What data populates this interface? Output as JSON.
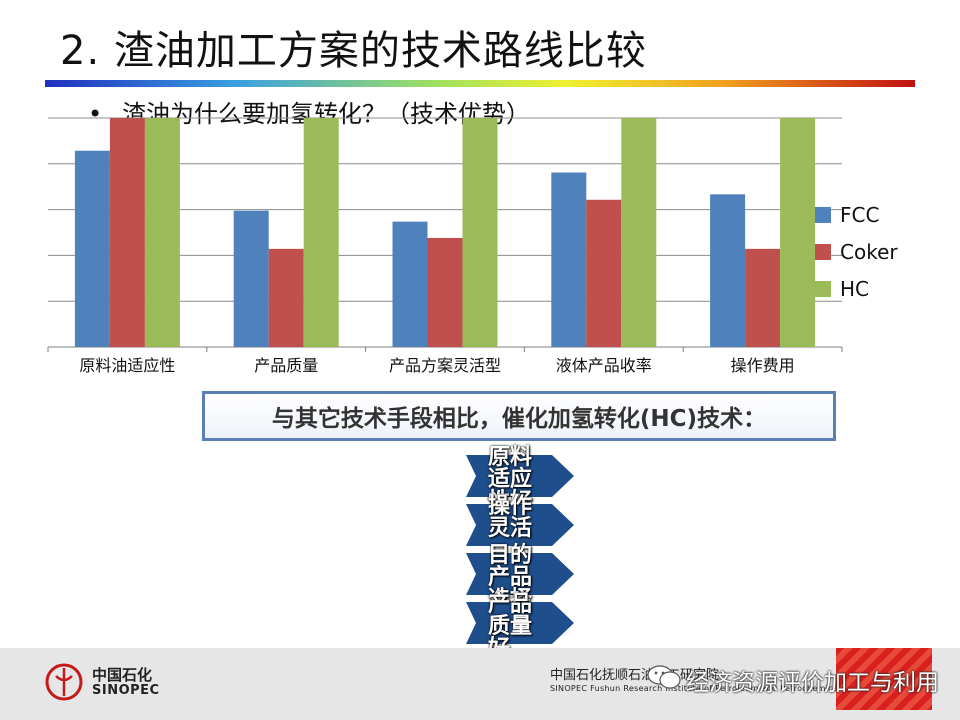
{
  "slide": {
    "title": "2. 渣油加工方案的技术路线比较",
    "bullet_marker": "•",
    "bullet_text": "渣油为什么要加氢转化？（技术优势）"
  },
  "chart_data": {
    "type": "bar",
    "categories": [
      "原料油适应性",
      "产品质量",
      "产品方案灵活型",
      "液体产品收率",
      "操作费用"
    ],
    "series": [
      {
        "name": "FCC",
        "color": "#4f81bd",
        "values": [
          3.6,
          2.5,
          2.3,
          3.2,
          2.8
        ]
      },
      {
        "name": "Coker",
        "color": "#c0504d",
        "values": [
          4.2,
          1.8,
          2.0,
          2.7,
          1.8
        ]
      },
      {
        "name": "HC",
        "color": "#9bbb59",
        "values": [
          4.2,
          4.2,
          4.2,
          4.2,
          4.2
        ]
      }
    ],
    "ylim": [
      0,
      4.2
    ],
    "y_gridlines": 5,
    "grid": true,
    "legend_position": "right",
    "xlabel": "",
    "ylabel": ""
  },
  "callout": {
    "text": "与其它技术手段相比，催化加氢转化(HC)技术："
  },
  "arrows": [
    {
      "label": "原料适应性好",
      "color": "#1f4e8c"
    },
    {
      "label": "操作灵活",
      "color": "#1f4e8c"
    },
    {
      "label": "目的产品选择性高",
      "color": "#1f4e8c"
    },
    {
      "label": "产品质量好",
      "color": "#1f4e8c"
    }
  ],
  "footer": {
    "company_cn": "中国石化",
    "company_en": "SINOPEC",
    "institute_cn": "中国石化抚顺石油化工研究院",
    "institute_en": "SINOPEC  Fushun Research Institute of Petroleum and Petrochemicals",
    "watermark": "经济资源评价加工与利用",
    "logo_icon": "sinopec-logo-icon",
    "watermark_icon": "wechat-icon"
  }
}
